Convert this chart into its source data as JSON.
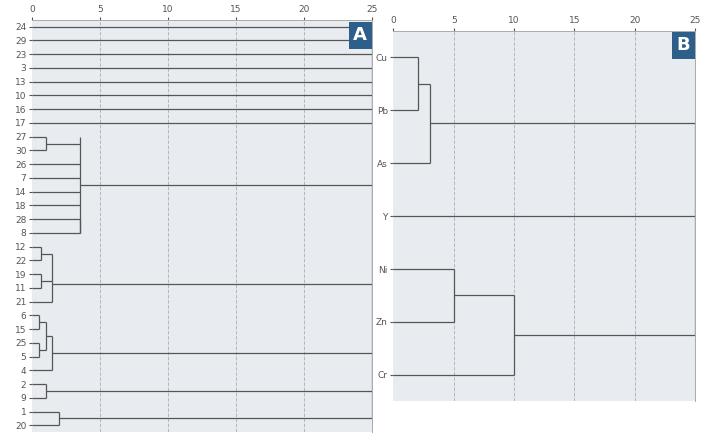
{
  "panel_A": {
    "label": "A",
    "bg_color": "#e8ecf0",
    "grid_color": "#b0b8c0",
    "xlim": [
      0,
      25
    ],
    "xticks": [
      0,
      5,
      10,
      15,
      20,
      25
    ],
    "leaf_labels": [
      "24",
      "29",
      "23",
      "3",
      "13",
      "10",
      "16",
      "17",
      "27",
      "30",
      "26",
      "7",
      "14",
      "18",
      "28",
      "8",
      "12",
      "22",
      "19",
      "11",
      "21",
      "6",
      "15",
      "25",
      "5",
      "4",
      "2",
      "9",
      "1",
      "20"
    ]
  },
  "panel_B": {
    "label": "B",
    "bg_color": "#e8ecf0",
    "grid_color": "#b0b8c0",
    "xlim": [
      0,
      25
    ],
    "xticks": [
      0,
      5,
      10,
      15,
      20,
      25
    ],
    "leaf_labels": [
      "Cu",
      "Pb",
      "As",
      "Y",
      "Ni",
      "Zn",
      "Cr"
    ]
  },
  "line_color": "#555555",
  "line_width": 0.9,
  "font_size": 6.5,
  "label_font_size": 13,
  "label_bg": "#2e5f8a",
  "label_text_color": "white",
  "spine_color": "#aaaaaa",
  "tick_color": "#555555",
  "fig_bg": "#ffffff"
}
